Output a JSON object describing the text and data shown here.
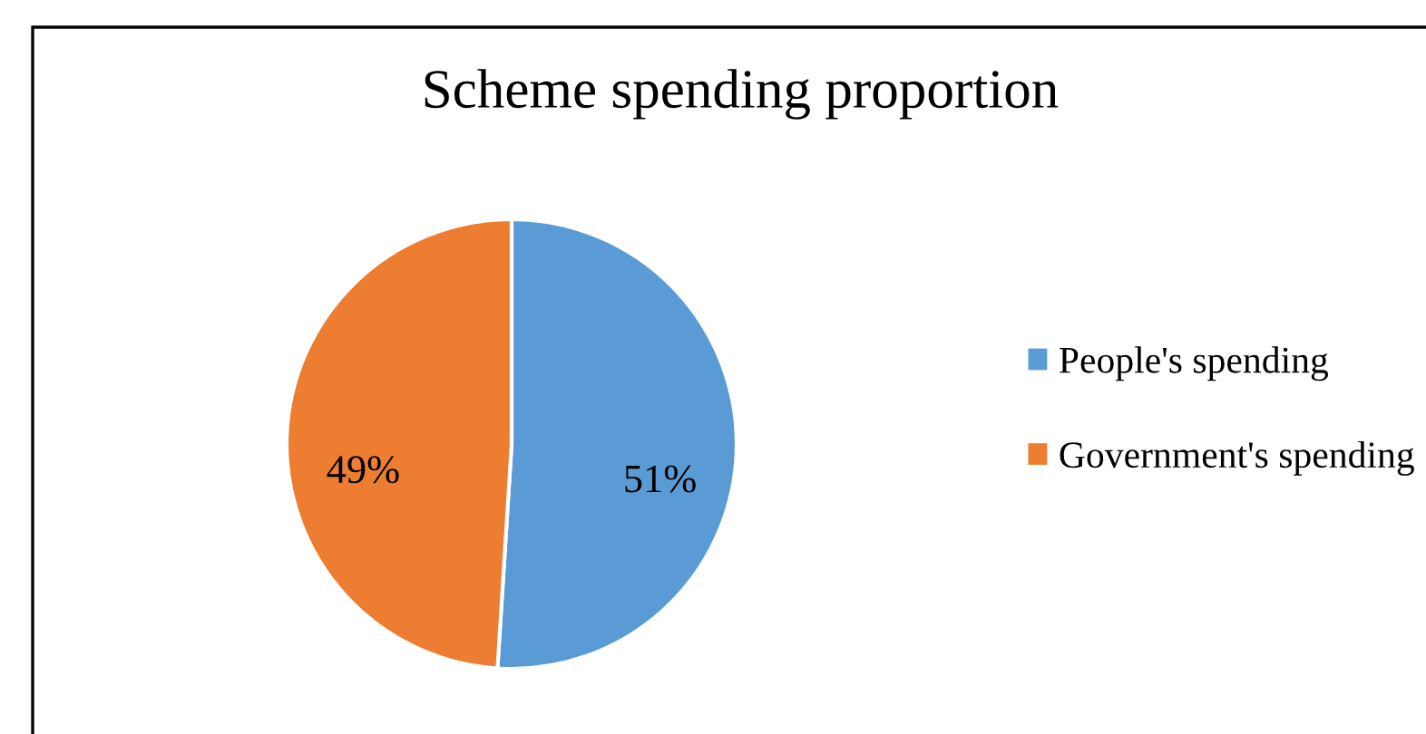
{
  "chart_data": {
    "type": "pie",
    "title": "Scheme spending proportion",
    "categories": [
      "People's spending",
      "Government's spending"
    ],
    "values": [
      51,
      49
    ],
    "colors": [
      "#5b9bd5",
      "#ed7d31"
    ],
    "value_labels": [
      "51%",
      "49%"
    ],
    "legend": "right"
  }
}
